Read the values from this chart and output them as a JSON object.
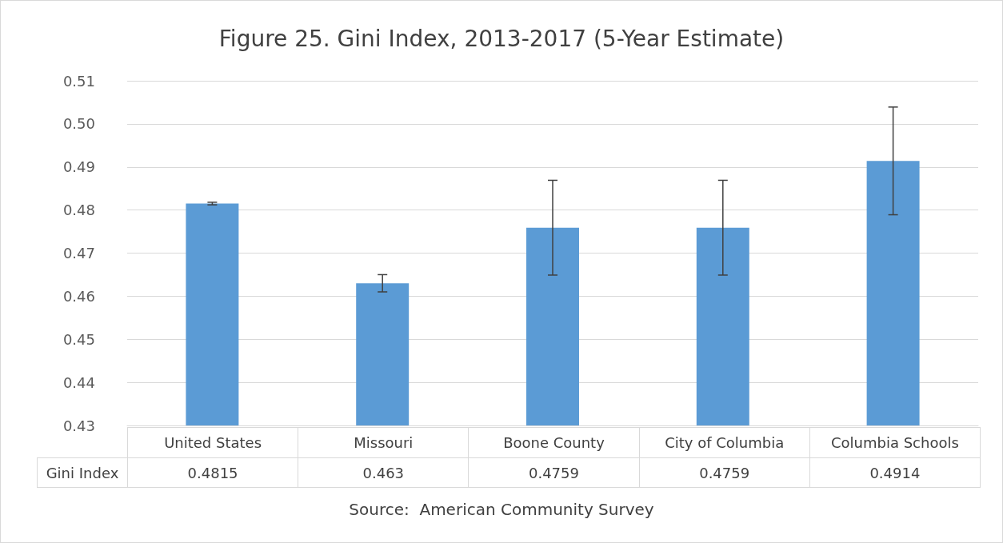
{
  "chart_data": {
    "type": "bar",
    "title": "Figure 25. Gini Index, 2013-2017 (5-Year Estimate)",
    "categories": [
      "United States",
      "Missouri",
      "Boone County",
      "City of Columbia",
      "Columbia Schools"
    ],
    "series": [
      {
        "name": "Gini Index",
        "color": "#5b9bd5",
        "values": [
          0.4815,
          0.463,
          0.4759,
          0.4759,
          0.4914
        ],
        "errors": [
          0.0003,
          0.002,
          0.011,
          0.011,
          0.0125
        ]
      }
    ],
    "ylim": [
      0.43,
      0.51
    ],
    "yticks": [
      0.43,
      0.44,
      0.45,
      0.46,
      0.47,
      0.48,
      0.49,
      {
        "value": 0.5,
        "label": "0.50"
      },
      0.51
    ],
    "grid": "y",
    "legend": false,
    "data_labels": true,
    "annotations": [
      "Source:  American Community Survey"
    ]
  }
}
